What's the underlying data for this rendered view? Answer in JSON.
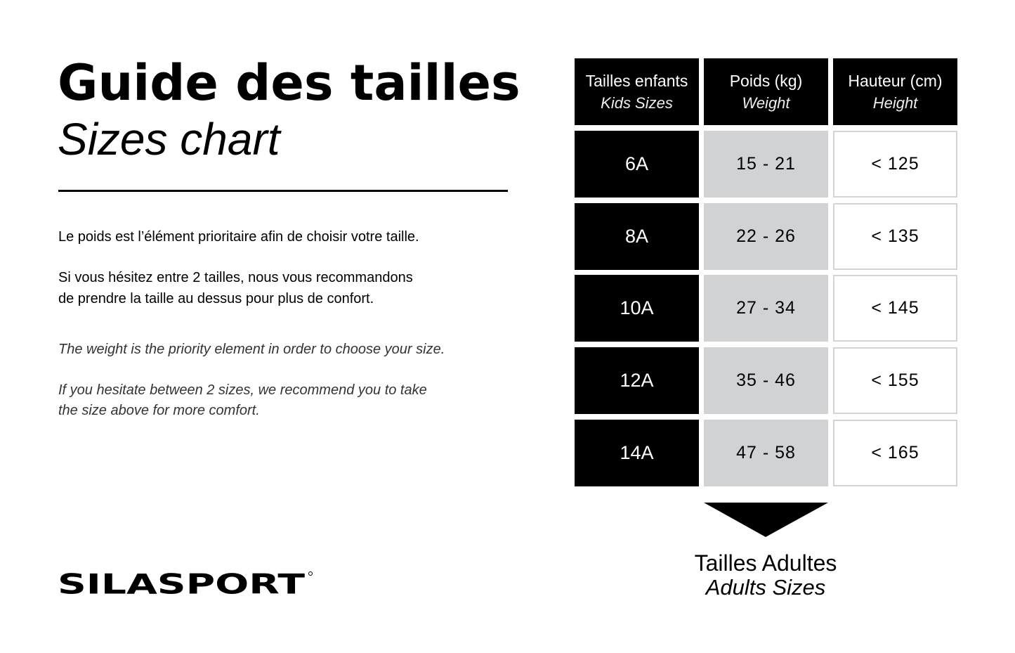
{
  "header": {
    "title": "Guide des tailles",
    "subtitle": "Sizes chart"
  },
  "paragraphs": {
    "fr1": "Le poids est l’élément prioritaire afin de choisir votre taille.",
    "fr2a": "Si vous hésitez entre 2 tailles, nous vous recommandons",
    "fr2b": "de prendre la taille au dessus pour plus de confort.",
    "en1": "The weight is the priority element in order to choose your size.",
    "en2a": "If you hesitate between 2 sizes, we recommend you to take",
    "en2b": "the size above for more comfort."
  },
  "table": {
    "columns": [
      {
        "fr": "Tailles enfants",
        "en": "Kids Sizes"
      },
      {
        "fr": "Poids (kg)",
        "en": "Weight"
      },
      {
        "fr": "Hauteur (cm)",
        "en": "Height"
      }
    ],
    "rows": [
      {
        "size": "6A",
        "weight": "15 - 21",
        "height": "< 125"
      },
      {
        "size": "8A",
        "weight": "22 - 26",
        "height": "< 135"
      },
      {
        "size": "10A",
        "weight": "27 - 34",
        "height": "< 145"
      },
      {
        "size": "12A",
        "weight": "35 - 46",
        "height": "< 155"
      },
      {
        "size": "14A",
        "weight": "47 - 58",
        "height": "< 165"
      }
    ]
  },
  "adults": {
    "fr": "Tailles Adultes",
    "en": "Adults Sizes",
    "icon": "arrow-down-triangle-icon"
  },
  "logo": {
    "text": "SILASPORT"
  },
  "colors": {
    "black": "#000000",
    "gray": "#d1d2d4",
    "border": "#d4d4d4"
  }
}
